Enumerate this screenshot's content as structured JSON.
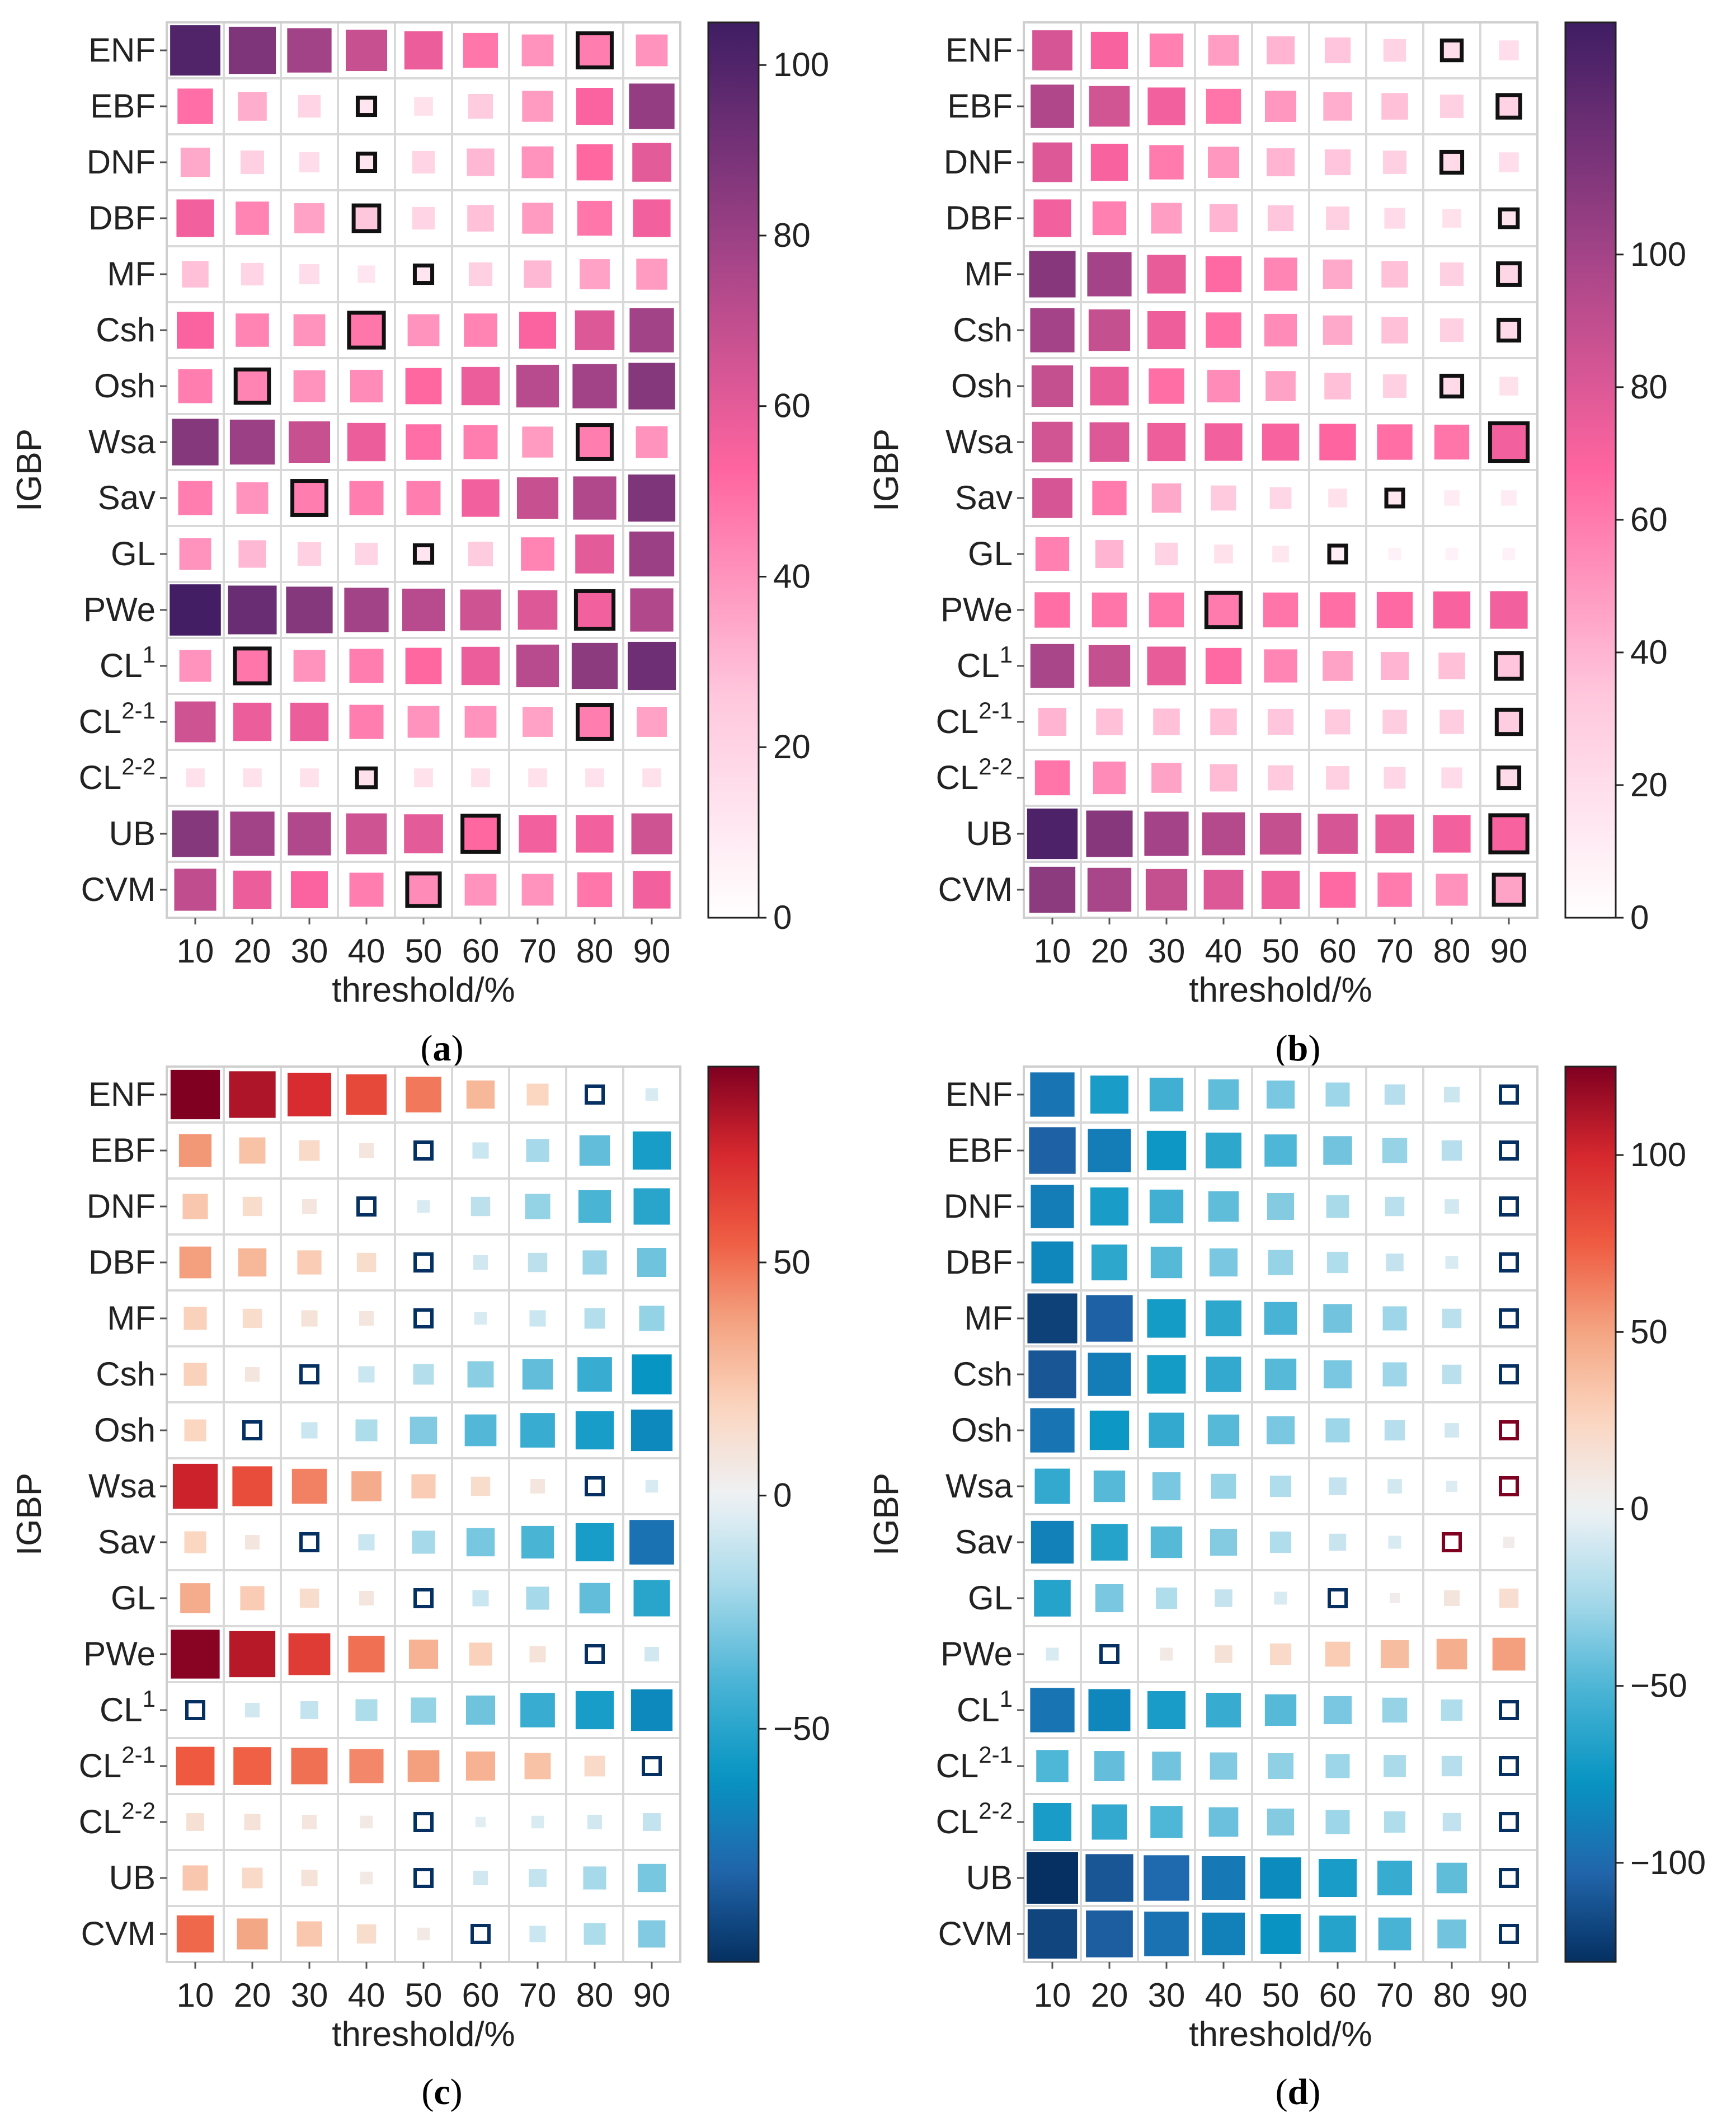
{
  "chart_data": [
    {
      "type": "heatmap",
      "panel_label": "a",
      "title": "",
      "xlabel": "threshold/%",
      "ylabel": "IGBP",
      "categories": [
        "ENF",
        "EBF",
        "DNF",
        "DBF",
        "MF",
        "Csh",
        "Osh",
        "Wsa",
        "Sav",
        "GL",
        "PWe",
        "CL^1",
        "CL^2-1",
        "CL^2-2",
        "UB",
        "CVM"
      ],
      "x": [
        10,
        20,
        30,
        40,
        50,
        60,
        70,
        80,
        90
      ],
      "colormap": [
        "#ffffff",
        "#ffc6dc",
        "#ff65a0",
        "#a04286",
        "#3f1d63"
      ],
      "colorbar": {
        "vmin": 0,
        "vmax": 105,
        "ticks": [
          0,
          20,
          40,
          60,
          80,
          100
        ]
      },
      "highlighted": [
        {
          "row": "ENF",
          "x": 80
        },
        {
          "row": "EBF",
          "x": 40
        },
        {
          "row": "DNF",
          "x": 40
        },
        {
          "row": "DBF",
          "x": 40
        },
        {
          "row": "MF",
          "x": 50
        },
        {
          "row": "Csh",
          "x": 40
        },
        {
          "row": "Osh",
          "x": 20
        },
        {
          "row": "Wsa",
          "x": 80
        },
        {
          "row": "Sav",
          "x": 30
        },
        {
          "row": "GL",
          "x": 50
        },
        {
          "row": "PWe",
          "x": 80
        },
        {
          "row": "CL^1",
          "x": 20
        },
        {
          "row": "CL^2-1",
          "x": 80
        },
        {
          "row": "CL^2-2",
          "x": 40
        },
        {
          "row": "UB",
          "x": 60
        },
        {
          "row": "CVM",
          "x": 50
        }
      ],
      "values": [
        [
          100,
          88,
          78,
          68,
          58,
          48,
          40,
          46,
          40
        ],
        [
          50,
          33,
          20,
          12,
          14,
          24,
          38,
          54,
          82
        ],
        [
          34,
          22,
          16,
          12,
          20,
          30,
          40,
          52,
          60
        ],
        [
          56,
          44,
          36,
          26,
          20,
          28,
          38,
          48,
          56
        ],
        [
          28,
          20,
          16,
          12,
          12,
          22,
          30,
          36,
          38
        ],
        [
          54,
          44,
          40,
          48,
          40,
          44,
          54,
          62,
          78
        ],
        [
          46,
          44,
          40,
          42,
          52,
          58,
          72,
          78,
          86
        ],
        [
          86,
          80,
          68,
          58,
          50,
          46,
          38,
          46,
          40
        ],
        [
          46,
          40,
          46,
          46,
          46,
          56,
          68,
          74,
          88
        ],
        [
          40,
          30,
          22,
          20,
          12,
          24,
          44,
          60,
          80
        ],
        [
          104,
          94,
          86,
          78,
          72,
          66,
          62,
          56,
          74
        ],
        [
          40,
          48,
          40,
          46,
          52,
          58,
          72,
          84,
          92
        ],
        [
          66,
          58,
          58,
          46,
          40,
          40,
          36,
          46,
          36
        ],
        [
          14,
          14,
          14,
          14,
          14,
          14,
          14,
          14,
          14
        ],
        [
          86,
          78,
          74,
          66,
          60,
          52,
          56,
          56,
          66
        ],
        [
          70,
          58,
          54,
          46,
          42,
          40,
          40,
          48,
          56
        ]
      ]
    },
    {
      "type": "heatmap",
      "panel_label": "b",
      "title": "",
      "xlabel": "threshold/%",
      "ylabel": "IGBP",
      "categories": [
        "ENF",
        "EBF",
        "DNF",
        "DBF",
        "MF",
        "Csh",
        "Osh",
        "Wsa",
        "Sav",
        "GL",
        "PWe",
        "CL^1",
        "CL^2-1",
        "CL^2-2",
        "UB",
        "CVM"
      ],
      "x": [
        10,
        20,
        30,
        40,
        50,
        60,
        70,
        80,
        90
      ],
      "colormap": [
        "#ffffff",
        "#ffc6dc",
        "#ff65a0",
        "#a04286",
        "#3f1d63"
      ],
      "colorbar": {
        "vmin": 0,
        "vmax": 135,
        "ticks": [
          0,
          20,
          40,
          60,
          80,
          100
        ]
      },
      "highlighted": [
        {
          "row": "ENF",
          "x": 80
        },
        {
          "row": "EBF",
          "x": 90
        },
        {
          "row": "DNF",
          "x": 80
        },
        {
          "row": "DBF",
          "x": 90
        },
        {
          "row": "MF",
          "x": 90
        },
        {
          "row": "Csh",
          "x": 90
        },
        {
          "row": "Osh",
          "x": 80
        },
        {
          "row": "Wsa",
          "x": 90
        },
        {
          "row": "Sav",
          "x": 70
        },
        {
          "row": "GL",
          "x": 60
        },
        {
          "row": "PWe",
          "x": 40
        },
        {
          "row": "CL^1",
          "x": 90
        },
        {
          "row": "CL^2-1",
          "x": 90
        },
        {
          "row": "CL^2-2",
          "x": 90
        },
        {
          "row": "UB",
          "x": 90
        },
        {
          "row": "CVM",
          "x": 90
        }
      ],
      "values": [
        [
          82,
          70,
          58,
          48,
          40,
          34,
          26,
          20,
          20
        ],
        [
          96,
          84,
          72,
          62,
          50,
          42,
          36,
          28,
          26
        ],
        [
          80,
          70,
          60,
          50,
          40,
          34,
          28,
          22,
          20
        ],
        [
          72,
          58,
          48,
          40,
          34,
          28,
          22,
          18,
          16
        ],
        [
          110,
          100,
          76,
          66,
          56,
          44,
          36,
          28,
          24
        ],
        [
          100,
          88,
          74,
          64,
          54,
          44,
          36,
          28,
          22
        ],
        [
          88,
          76,
          64,
          54,
          46,
          36,
          28,
          22,
          18
        ],
        [
          84,
          80,
          74,
          72,
          70,
          68,
          64,
          62,
          72
        ],
        [
          82,
          60,
          44,
          32,
          24,
          18,
          14,
          12,
          12
        ],
        [
          58,
          40,
          26,
          18,
          14,
          10,
          8,
          8,
          8
        ],
        [
          64,
          62,
          62,
          60,
          62,
          64,
          66,
          70,
          72
        ],
        [
          98,
          88,
          76,
          66,
          56,
          46,
          40,
          36,
          34
        ],
        [
          40,
          36,
          36,
          36,
          34,
          32,
          30,
          30,
          30
        ],
        [
          62,
          54,
          46,
          38,
          32,
          28,
          24,
          22,
          22
        ],
        [
          130,
          110,
          100,
          94,
          88,
          82,
          76,
          72,
          70
        ],
        [
          108,
          98,
          88,
          80,
          74,
          66,
          60,
          52,
          46
        ]
      ]
    },
    {
      "type": "heatmap",
      "panel_label": "c",
      "title": "",
      "xlabel": "threshold/%",
      "ylabel": "IGBP",
      "categories": [
        "ENF",
        "EBF",
        "DNF",
        "DBF",
        "MF",
        "Csh",
        "Osh",
        "Wsa",
        "Sav",
        "GL",
        "PWe",
        "CL^1",
        "CL^2-1",
        "CL^2-2",
        "UB",
        "CVM"
      ],
      "x": [
        10,
        20,
        30,
        40,
        50,
        60,
        70,
        80,
        90
      ],
      "colormap": [
        "#053061",
        "#2166ac",
        "#0795c3",
        "#4ab4d5",
        "#a6d9ea",
        "#eef2f5",
        "#fbd6c1",
        "#f4a582",
        "#ef5b41",
        "#d6272e",
        "#7f0021"
      ],
      "colorbar": {
        "vmin": -100,
        "vmax": 92,
        "ticks": [
          -50,
          0,
          50
        ]
      },
      "highlighted": [
        {
          "row": "ENF",
          "x": 80
        },
        {
          "row": "EBF",
          "x": 50
        },
        {
          "row": "DNF",
          "x": 40
        },
        {
          "row": "DBF",
          "x": 50
        },
        {
          "row": "MF",
          "x": 50
        },
        {
          "row": "Csh",
          "x": 30
        },
        {
          "row": "Osh",
          "x": 20
        },
        {
          "row": "Wsa",
          "x": 80
        },
        {
          "row": "Sav",
          "x": 30
        },
        {
          "row": "GL",
          "x": 50
        },
        {
          "row": "PWe",
          "x": 80
        },
        {
          "row": "CL^1",
          "x": 10
        },
        {
          "row": "CL^2-1",
          "x": 90
        },
        {
          "row": "CL^2-2",
          "x": 50
        },
        {
          "row": "UB",
          "x": 50
        },
        {
          "row": "CVM",
          "x": 60
        }
      ],
      "values": [
        [
          92,
          82,
          72,
          62,
          48,
          30,
          18,
          -2,
          -6
        ],
        [
          40,
          26,
          16,
          8,
          -2,
          -10,
          -20,
          -35,
          -55
        ],
        [
          24,
          14,
          8,
          -2,
          -6,
          -14,
          -24,
          -40,
          -50
        ],
        [
          38,
          30,
          22,
          14,
          -2,
          -8,
          -14,
          -22,
          -32
        ],
        [
          20,
          14,
          10,
          8,
          -2,
          -6,
          -10,
          -16,
          -24
        ],
        [
          20,
          8,
          -2,
          -10,
          -16,
          -26,
          -35,
          -45,
          -60
        ],
        [
          18,
          -2,
          -10,
          -18,
          -28,
          -38,
          -45,
          -55,
          -65
        ],
        [
          76,
          60,
          46,
          34,
          22,
          14,
          8,
          -2,
          -6
        ],
        [
          18,
          8,
          -2,
          -10,
          -20,
          -30,
          -40,
          -55,
          -75
        ],
        [
          34,
          22,
          14,
          8,
          -2,
          -10,
          -20,
          -35,
          -50
        ],
        [
          90,
          80,
          66,
          50,
          32,
          20,
          10,
          -2,
          -8
        ],
        [
          -2,
          -8,
          -12,
          -18,
          -24,
          -32,
          -45,
          -55,
          -65
        ],
        [
          56,
          54,
          50,
          44,
          38,
          32,
          26,
          16,
          -2
        ],
        [
          12,
          10,
          8,
          6,
          -2,
          -4,
          -6,
          -8,
          -12
        ],
        [
          24,
          16,
          10,
          6,
          -2,
          -8,
          -12,
          -20,
          -30
        ],
        [
          52,
          36,
          24,
          14,
          6,
          -2,
          -10,
          -18,
          -28
        ]
      ]
    },
    {
      "type": "heatmap",
      "panel_label": "d",
      "title": "",
      "xlabel": "threshold/%",
      "ylabel": "IGBP",
      "categories": [
        "ENF",
        "EBF",
        "DNF",
        "DBF",
        "MF",
        "Csh",
        "Osh",
        "Wsa",
        "Sav",
        "GL",
        "PWe",
        "CL^1",
        "CL^2-1",
        "CL^2-2",
        "UB",
        "CVM"
      ],
      "x": [
        10,
        20,
        30,
        40,
        50,
        60,
        70,
        80,
        90
      ],
      "colormap": [
        "#053061",
        "#2166ac",
        "#0795c3",
        "#4ab4d5",
        "#a6d9ea",
        "#eef2f5",
        "#fbd6c1",
        "#f4a582",
        "#ef5b41",
        "#d6272e",
        "#7f0021"
      ],
      "colorbar": {
        "vmin": -128,
        "vmax": 125,
        "ticks": [
          -100,
          -50,
          0,
          50,
          100
        ]
      },
      "highlighted": [
        {
          "row": "ENF",
          "x": 90
        },
        {
          "row": "EBF",
          "x": 90
        },
        {
          "row": "DNF",
          "x": 90
        },
        {
          "row": "DBF",
          "x": 90
        },
        {
          "row": "MF",
          "x": 90
        },
        {
          "row": "Csh",
          "x": 90
        },
        {
          "row": "Osh",
          "x": 90
        },
        {
          "row": "Wsa",
          "x": 90
        },
        {
          "row": "Sav",
          "x": 80
        },
        {
          "row": "GL",
          "x": 60
        },
        {
          "row": "PWe",
          "x": 20
        },
        {
          "row": "CL^1",
          "x": 90
        },
        {
          "row": "CL^2-1",
          "x": 90
        },
        {
          "row": "CL^2-2",
          "x": 90
        },
        {
          "row": "UB",
          "x": 90
        },
        {
          "row": "CVM",
          "x": 90
        }
      ],
      "values": [
        [
          -95,
          -70,
          -55,
          -45,
          -38,
          -28,
          -20,
          -12,
          -3
        ],
        [
          -105,
          -90,
          -75,
          -62,
          -50,
          -40,
          -30,
          -20,
          -3
        ],
        [
          -90,
          -70,
          -55,
          -45,
          -35,
          -25,
          -18,
          -10,
          -3
        ],
        [
          -85,
          -62,
          -48,
          -38,
          -30,
          -22,
          -15,
          -8,
          -3
        ],
        [
          -120,
          -105,
          -72,
          -62,
          -52,
          -40,
          -28,
          -18,
          -3
        ],
        [
          -110,
          -90,
          -72,
          -60,
          -48,
          -38,
          -28,
          -18,
          -3
        ],
        [
          -95,
          -75,
          -60,
          -48,
          -38,
          -28,
          -20,
          -10,
          3
        ],
        [
          -60,
          -48,
          -38,
          -30,
          -22,
          -15,
          -10,
          -6,
          3
        ],
        [
          -88,
          -65,
          -48,
          -35,
          -22,
          -14,
          -8,
          3,
          6
        ],
        [
          -65,
          -38,
          -22,
          -15,
          -8,
          -3,
          5,
          12,
          18
        ],
        [
          -8,
          -3,
          8,
          15,
          22,
          30,
          38,
          45,
          52
        ],
        [
          -95,
          -85,
          -70,
          -58,
          -48,
          -38,
          -30,
          -22,
          -3
        ],
        [
          -50,
          -44,
          -40,
          -36,
          -32,
          -28,
          -24,
          -20,
          -3
        ],
        [
          -70,
          -60,
          -50,
          -42,
          -35,
          -28,
          -22,
          -16,
          -3
        ],
        [
          -128,
          -110,
          -100,
          -92,
          -82,
          -70,
          -58,
          -45,
          -3
        ],
        [
          -118,
          -106,
          -96,
          -88,
          -78,
          -65,
          -52,
          -40,
          -3
        ]
      ]
    }
  ]
}
